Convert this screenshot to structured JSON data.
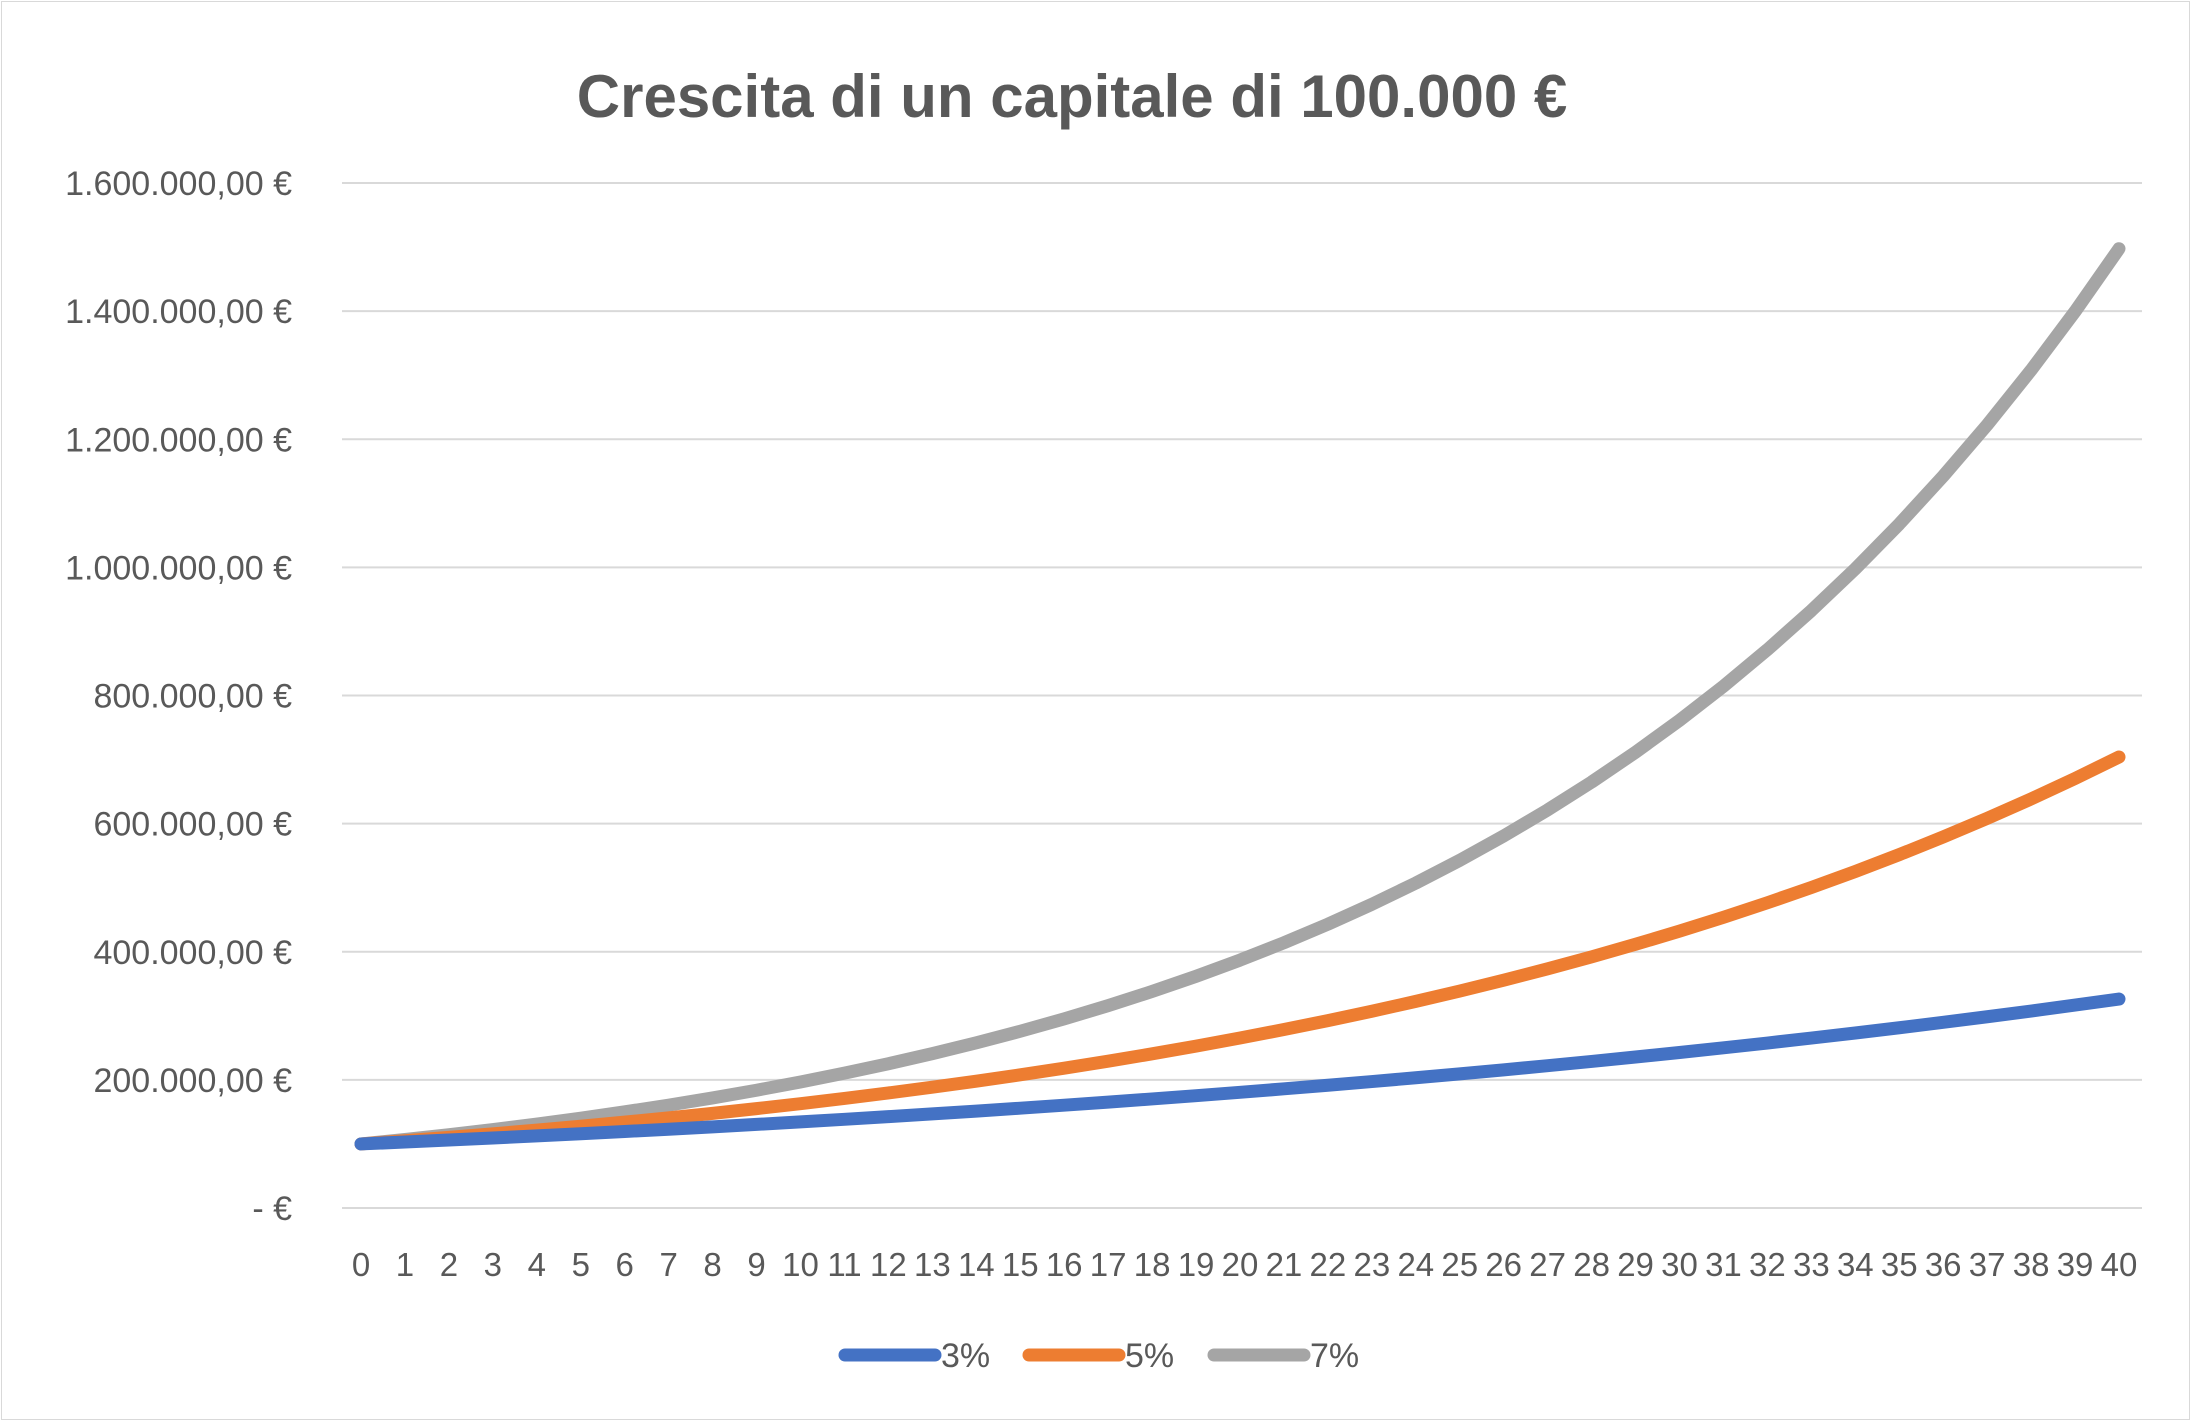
{
  "chart_data": {
    "type": "line",
    "title": "Crescita di un capitale di 100.000 €",
    "xlabel": "",
    "ylabel": "",
    "ylim": [
      0,
      1600000
    ],
    "grid": true,
    "legend_position": "bottom",
    "y_tick_values": [
      0,
      200000,
      400000,
      600000,
      800000,
      1000000,
      1200000,
      1400000,
      1600000
    ],
    "y_tick_labels": [
      "-   €",
      "200.000,00 €",
      "400.000,00 €",
      "600.000,00 €",
      "800.000,00 €",
      "1.000.000,00 €",
      "1.200.000,00 €",
      "1.400.000,00 €",
      "1.600.000,00 €"
    ],
    "x": [
      "0",
      "1",
      "2",
      "3",
      "4",
      "5",
      "6",
      "7",
      "8",
      "9",
      "10",
      "11",
      "12",
      "13",
      "14",
      "15",
      "16",
      "17",
      "18",
      "19",
      "20",
      "21",
      "22",
      "23",
      "24",
      "25",
      "26",
      "27",
      "28",
      "29",
      "30",
      "31",
      "32",
      "33",
      "34",
      "35",
      "36",
      "37",
      "38",
      "39",
      "40"
    ],
    "series": [
      {
        "name": "3%",
        "color": "#4472c4",
        "values": [
          100000,
          103000,
          106090,
          109273,
          112551,
          115927,
          119405,
          122987,
          126677,
          130477,
          134392,
          138423,
          142576,
          146853,
          151259,
          155797,
          160471,
          165285,
          170243,
          175351,
          180611,
          186029,
          191610,
          197359,
          203279,
          209378,
          215659,
          222129,
          228793,
          235657,
          242726,
          250008,
          257508,
          265234,
          273191,
          281386,
          289828,
          298523,
          307478,
          316703,
          326204
        ]
      },
      {
        "name": "5%",
        "color": "#ed7d31",
        "values": [
          100000,
          105000,
          110250,
          115763,
          121551,
          127628,
          134010,
          140710,
          147746,
          155133,
          162889,
          171034,
          179586,
          188565,
          197993,
          207893,
          218287,
          229202,
          240662,
          252695,
          265330,
          278596,
          292526,
          307152,
          322510,
          338635,
          355567,
          373346,
          392013,
          411614,
          432194,
          453804,
          476494,
          500319,
          525335,
          551602,
          579182,
          608141,
          638548,
          670475,
          703999
        ]
      },
      {
        "name": "7%",
        "color": "#a5a5a5",
        "values": [
          100000,
          107000,
          114490,
          122504,
          131080,
          140255,
          150073,
          160578,
          171819,
          183846,
          196715,
          210485,
          225219,
          240985,
          257853,
          275903,
          295216,
          315882,
          337993,
          361653,
          386968,
          414056,
          443040,
          474053,
          507237,
          542743,
          580735,
          621387,
          664884,
          711426,
          761226,
          814511,
          871527,
          932534,
          997811,
          1067658,
          1142394,
          1222362,
          1307927,
          1399482,
          1497446
        ]
      }
    ]
  }
}
